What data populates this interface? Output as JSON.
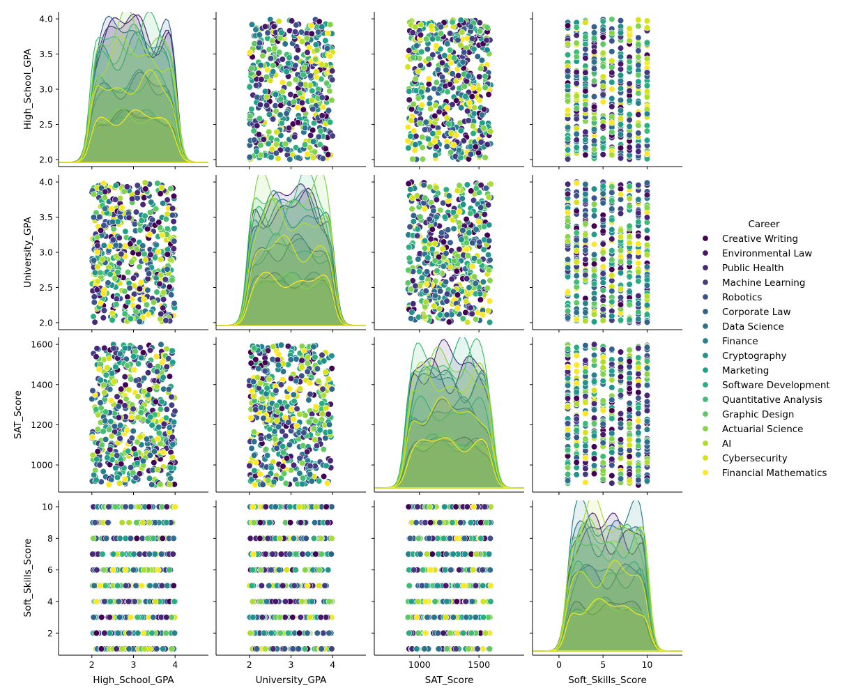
{
  "chart_data": {
    "type": "pairplot",
    "variables": [
      "High_School_GPA",
      "University_GPA",
      "SAT_Score",
      "Soft_Skills_Score"
    ],
    "axes": {
      "High_School_GPA": {
        "range": [
          1.2,
          4.8
        ],
        "ticks": [
          2,
          3,
          4
        ],
        "ytick_labels": [
          "2.0",
          "2.5",
          "3.0",
          "3.5",
          "4.0"
        ],
        "yticks": [
          2.0,
          2.5,
          3.0,
          3.5,
          4.0
        ],
        "yrange": [
          1.9,
          4.1
        ]
      },
      "University_GPA": {
        "range": [
          1.2,
          4.8
        ],
        "ticks": [
          2,
          3,
          4
        ],
        "ytick_labels": [
          "2.0",
          "2.5",
          "3.0",
          "3.5",
          "4.0"
        ],
        "yticks": [
          2.0,
          2.5,
          3.0,
          3.5,
          4.0
        ],
        "yrange": [
          1.9,
          4.1
        ]
      },
      "SAT_Score": {
        "range": [
          620,
          1880
        ],
        "ticks": [
          1000,
          1500
        ],
        "ytick_labels": [
          "1000",
          "1200",
          "1400",
          "1600"
        ],
        "yticks": [
          1000,
          1200,
          1400,
          1600
        ],
        "yrange": [
          865,
          1635
        ]
      },
      "Soft_Skills_Score": {
        "range": [
          -3,
          14
        ],
        "ticks": [
          0,
          5,
          10
        ],
        "ytick_labels": [
          "2",
          "4",
          "6",
          "8",
          "10"
        ],
        "yticks": [
          2,
          4,
          6,
          8,
          10
        ],
        "yrange": [
          0.6,
          10.4
        ]
      }
    },
    "data_ranges": {
      "High_School_GPA": [
        2.0,
        4.0
      ],
      "University_GPA": [
        2.0,
        4.0
      ],
      "SAT_Score": [
        900,
        1600
      ],
      "Soft_Skills_Score": [
        1,
        10
      ]
    },
    "diagonal": "kde",
    "off_diagonal": "scatter",
    "hue": "Career",
    "legend": {
      "title": "Career",
      "placement": "right",
      "entries": [
        {
          "name": "Creative Writing",
          "color": "#440154"
        },
        {
          "name": "Environmental Law",
          "color": "#481668"
        },
        {
          "name": "Public Health",
          "color": "#482878"
        },
        {
          "name": "Machine Learning",
          "color": "#433d84"
        },
        {
          "name": "Robotics",
          "color": "#3b528b"
        },
        {
          "name": "Corporate Law",
          "color": "#33638d"
        },
        {
          "name": "Data Science",
          "color": "#2c728e"
        },
        {
          "name": "Finance",
          "color": "#26828e"
        },
        {
          "name": "Cryptography",
          "color": "#21918c"
        },
        {
          "name": "Marketing",
          "color": "#1fa088"
        },
        {
          "name": "Software Development",
          "color": "#28ae80"
        },
        {
          "name": "Quantitative Analysis",
          "color": "#3fbc73"
        },
        {
          "name": "Graphic Design",
          "color": "#5ec962"
        },
        {
          "name": "Actuarial Science",
          "color": "#84d44b"
        },
        {
          "name": "AI",
          "color": "#addc30"
        },
        {
          "name": "Cybersecurity",
          "color": "#d8e219"
        },
        {
          "name": "Financial Mathematics",
          "color": "#fde725"
        }
      ]
    },
    "grid": false
  }
}
